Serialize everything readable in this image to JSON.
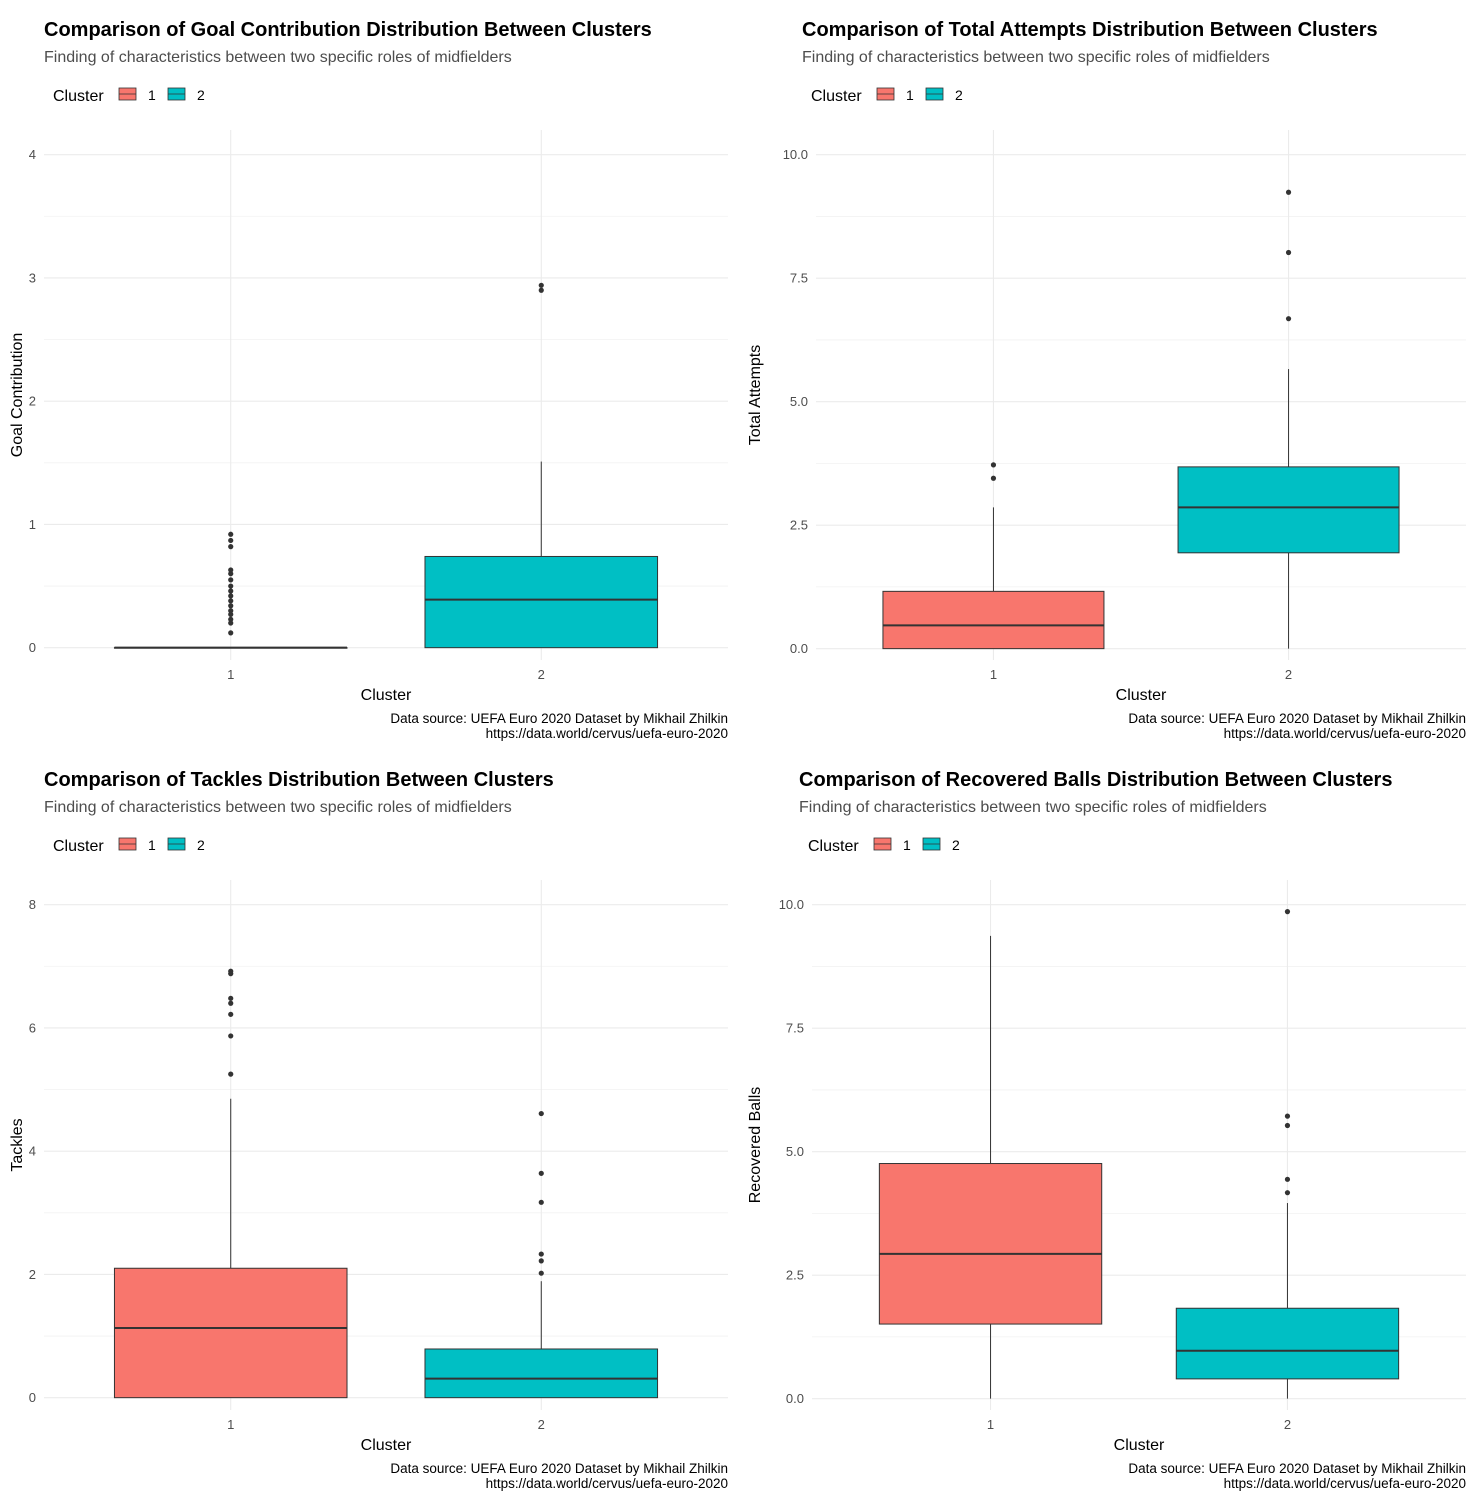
{
  "colors": {
    "cluster1": "#F8766D",
    "cluster2": "#00BFC4",
    "outline": "#333333"
  },
  "chart_data": [
    {
      "type": "boxplot",
      "title": "Comparison of Goal Contribution Distribution Between Clusters",
      "subtitle": "Finding of characteristics between two specific roles of midfielders",
      "legend_title": "Cluster",
      "legend_labels": [
        "1",
        "2"
      ],
      "xlabel": "Cluster",
      "ylabel": "Goal Contribution",
      "categories": [
        "1",
        "2"
      ],
      "yticks": [
        "0",
        "1",
        "2",
        "3",
        "4"
      ],
      "ylim": [
        -0.1,
        4.2
      ],
      "caption": [
        "Data source: UEFA Euro 2020 Dataset by Mikhail Zhilkin",
        "https://data.world/cervus/uefa-euro-2020"
      ],
      "series": [
        {
          "name": "1",
          "lower_whisker": 0,
          "q1": 0,
          "median": 0,
          "q3": 0,
          "upper_whisker": 0,
          "outliers": [
            0.12,
            0.2,
            0.23,
            0.27,
            0.3,
            0.34,
            0.38,
            0.42,
            0.46,
            0.5,
            0.55,
            0.6,
            0.63,
            0.82,
            0.87,
            0.92
          ]
        },
        {
          "name": "2",
          "lower_whisker": 0,
          "q1": 0,
          "median": 0.39,
          "q3": 0.74,
          "upper_whisker": 1.51,
          "outliers": [
            2.9,
            2.94
          ]
        }
      ]
    },
    {
      "type": "boxplot",
      "title": "Comparison of Total Attempts Distribution Between Clusters",
      "subtitle": "Finding of characteristics between two specific roles of midfielders",
      "legend_title": "Cluster",
      "legend_labels": [
        "1",
        "2"
      ],
      "xlabel": "Cluster",
      "ylabel": "Total Attempts",
      "categories": [
        "1",
        "2"
      ],
      "yticks": [
        "0.0",
        "2.5",
        "5.0",
        "7.5",
        "10.0"
      ],
      "ylim": [
        -0.23,
        10.5
      ],
      "caption": [
        "Data source: UEFA Euro 2020 Dataset by Mikhail Zhilkin",
        "https://data.world/cervus/uefa-euro-2020"
      ],
      "series": [
        {
          "name": "1",
          "lower_whisker": 0,
          "q1": 0,
          "median": 0.47,
          "q3": 1.16,
          "upper_whisker": 2.86,
          "outliers": [
            3.45,
            3.72
          ]
        },
        {
          "name": "2",
          "lower_whisker": 0,
          "q1": 1.94,
          "median": 2.86,
          "q3": 3.68,
          "upper_whisker": 5.66,
          "outliers": [
            6.68,
            8.02,
            9.24
          ]
        }
      ]
    },
    {
      "type": "boxplot",
      "title": "Comparison of Tackles Distribution Between Clusters",
      "subtitle": "Finding of characteristics between two specific roles of midfielders",
      "legend_title": "Cluster",
      "legend_labels": [
        "1",
        "2"
      ],
      "xlabel": "Cluster",
      "ylabel": "Tackles",
      "categories": [
        "1",
        "2"
      ],
      "yticks": [
        "0",
        "2",
        "4",
        "6",
        "8"
      ],
      "ylim": [
        -0.2,
        8.4
      ],
      "caption": [
        "Data source: UEFA Euro 2020 Dataset by Mikhail Zhilkin",
        "https://data.world/cervus/uefa-euro-2020"
      ],
      "series": [
        {
          "name": "1",
          "lower_whisker": 0,
          "q1": 0,
          "median": 1.13,
          "q3": 2.1,
          "upper_whisker": 4.85,
          "outliers": [
            5.25,
            5.87,
            6.22,
            6.4,
            6.48,
            6.88,
            6.92
          ]
        },
        {
          "name": "2",
          "lower_whisker": 0,
          "q1": 0,
          "median": 0.31,
          "q3": 0.79,
          "upper_whisker": 1.89,
          "outliers": [
            2.02,
            2.22,
            2.33,
            3.17,
            3.64,
            4.61
          ]
        }
      ]
    },
    {
      "type": "boxplot",
      "title": "Comparison of Recovered Balls Distribution Between Clusters",
      "subtitle": "Finding of characteristics between two specific roles of midfielders",
      "legend_title": "Cluster",
      "legend_labels": [
        "1",
        "2"
      ],
      "xlabel": "Cluster",
      "ylabel": "Recovered Balls",
      "categories": [
        "1",
        "2"
      ],
      "yticks": [
        "0.0",
        "2.5",
        "5.0",
        "7.5",
        "10.0"
      ],
      "ylim": [
        -0.23,
        10.5
      ],
      "caption": [
        "Data source: UEFA Euro 2020 Dataset by Mikhail Zhilkin",
        "https://data.world/cervus/uefa-euro-2020"
      ],
      "series": [
        {
          "name": "1",
          "lower_whisker": 0,
          "q1": 1.51,
          "median": 2.93,
          "q3": 4.76,
          "upper_whisker": 9.37,
          "outliers": []
        },
        {
          "name": "2",
          "lower_whisker": 0,
          "q1": 0.4,
          "median": 0.97,
          "q3": 1.83,
          "upper_whisker": 3.96,
          "outliers": [
            4.17,
            4.44,
            5.53,
            5.72,
            9.86
          ]
        }
      ]
    }
  ]
}
